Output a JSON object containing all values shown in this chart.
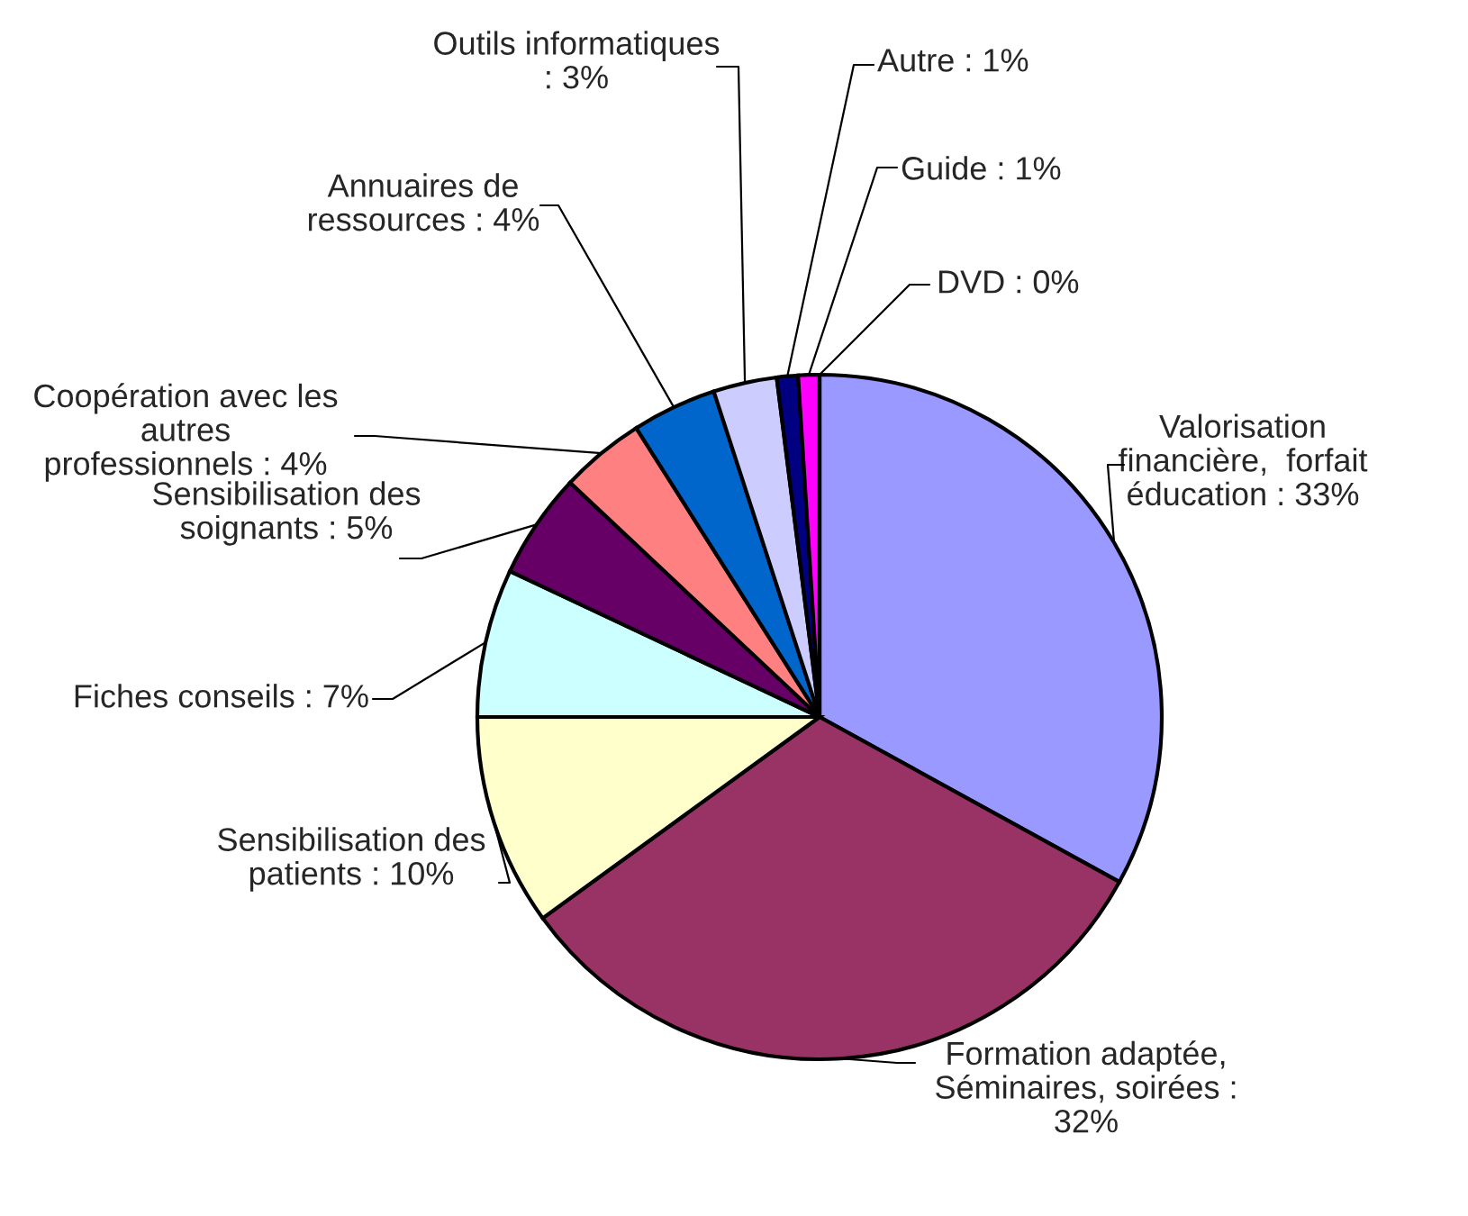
{
  "chart_data": {
    "type": "pie",
    "categories": [
      "Valorisation\nfinancière,  forfait\néducation : 33%",
      "Formation adaptée,\nSéminaires, soirées :\n32%",
      "Sensibilisation des\npatients : 10%",
      "Fiches conseils : 7%",
      "Sensibilisation des\nsoignants : 5%",
      "Coopération avec les\nautres\nprofessionnels : 4%",
      "Annuaires de\nressources : 4%",
      "Outils informatiques\n: 3%",
      "Autre : 1%",
      "Guide : 1%",
      "DVD : 0%"
    ],
    "values": [
      33,
      32,
      10,
      7,
      5,
      4,
      4,
      3,
      1,
      1,
      0
    ],
    "colors": [
      "#9999ff",
      "#993366",
      "#ffffcc",
      "#ccffff",
      "#660066",
      "#ff8080",
      "#0066cc",
      "#ccccff",
      "#000080",
      "#ff00ff",
      "#ffff00"
    ],
    "legend": false
  }
}
